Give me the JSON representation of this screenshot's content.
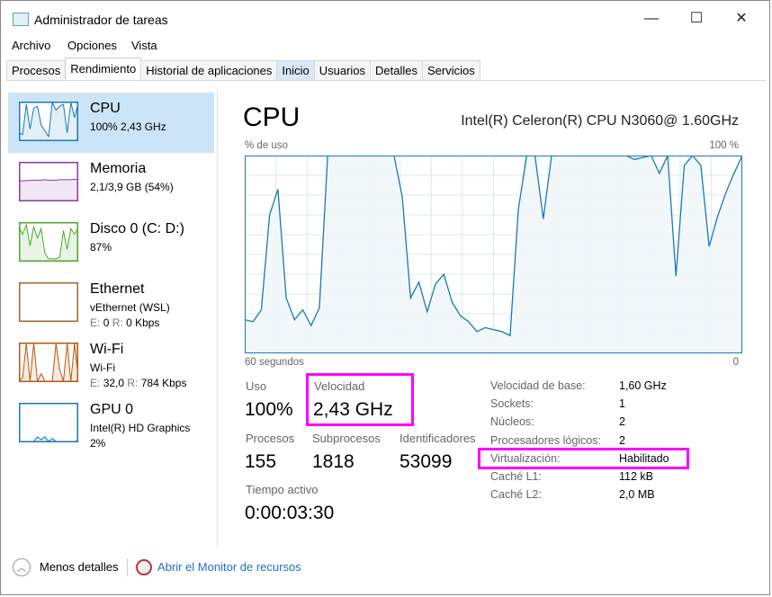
{
  "window": {
    "title": "Administrador de tareas",
    "minimize": "—",
    "maximize": "☐",
    "close": "✕"
  },
  "menu": [
    "Archivo",
    "Opciones",
    "Vista"
  ],
  "tabs": [
    {
      "label": "Procesos"
    },
    {
      "label": "Rendimiento",
      "active": true
    },
    {
      "label": "Historial de aplicaciones"
    },
    {
      "label": "Inicio",
      "hover": true
    },
    {
      "label": "Usuarios"
    },
    {
      "label": "Detalles"
    },
    {
      "label": "Servicios"
    }
  ],
  "sidebar": {
    "items": [
      {
        "name": "cpu",
        "title": "CPU",
        "line1": "100% 2,43 GHz",
        "color": "#1979b9",
        "selected": true,
        "spark": [
          20,
          15,
          95,
          30,
          85,
          90,
          40,
          25,
          10,
          100,
          80,
          90,
          95,
          20,
          100,
          60,
          100
        ]
      },
      {
        "name": "memoria",
        "title": "Memoria",
        "line1": "2,1/3,9 GB (54%)",
        "color": "#8b38a8",
        "spark": [
          52,
          52,
          53,
          53,
          54,
          54,
          54,
          55,
          54,
          54,
          54,
          55,
          55,
          55,
          55,
          56,
          56
        ]
      },
      {
        "name": "disco",
        "title": "Disco 0 (C: D:)",
        "line1": "87%",
        "color": "#4ea72e",
        "spark": [
          90,
          70,
          95,
          40,
          90,
          60,
          85,
          20,
          5,
          5,
          5,
          10,
          80,
          30,
          85,
          70,
          87
        ]
      },
      {
        "name": "ethernet",
        "title": "Ethernet",
        "line1": "vEthernet (WSL)",
        "e_label": "E:",
        "e_value": "0",
        "r_label": "R:",
        "r_value": "0 Kbps",
        "color": "#a7652a",
        "spark": [
          0,
          0,
          0,
          0,
          0,
          0,
          0,
          0,
          0,
          0,
          0,
          0,
          0,
          0,
          0,
          0,
          0
        ]
      },
      {
        "name": "wifi",
        "title": "Wi-Fi",
        "line1": "Wi-Fi",
        "e_label": "E:",
        "e_value": "32,0",
        "r_label": "R:",
        "r_value": "784 Kbps",
        "color": "#b85712",
        "spark": [
          0,
          10,
          100,
          0,
          100,
          0,
          20,
          0,
          0,
          0,
          100,
          30,
          0,
          100,
          0,
          100,
          10
        ]
      },
      {
        "name": "gpu",
        "title": "GPU 0",
        "line1": "Intel(R) HD Graphics",
        "line2": "2%",
        "color": "#1979b9",
        "spark": [
          0,
          0,
          0,
          0,
          0,
          12,
          5,
          12,
          0,
          8,
          0,
          0,
          0,
          0,
          0,
          0,
          2
        ]
      }
    ]
  },
  "main": {
    "title": "CPU",
    "model": "Intel(R) Celeron(R) CPU N3060@ 1.60GHz",
    "stats": {
      "uso_label": "Uso",
      "uso_value": "100%",
      "velocidad_label": "Velocidad",
      "velocidad_value": "2,43 GHz",
      "procesos_label": "Procesos",
      "procesos_value": "155",
      "subprocesos_label": "Subprocesos",
      "subprocesos_value": "1818",
      "identificadores_label": "Identificadores",
      "identificadores_value": "53099",
      "tiempo_label": "Tiempo activo",
      "tiempo_value": "0:00:03:30"
    },
    "details": [
      {
        "label": "Velocidad de base:",
        "value": "1,60 GHz"
      },
      {
        "label": "Sockets:",
        "value": "1"
      },
      {
        "label": "Núcleos:",
        "value": "2"
      },
      {
        "label": "Procesadores lógicos:",
        "value": "2"
      },
      {
        "label": "Virtualización:",
        "value": "Habilitado"
      },
      {
        "label": "Caché L1:",
        "value": "112 kB"
      },
      {
        "label": "Caché L2:",
        "value": "2,0 MB"
      }
    ],
    "highlight_color": "#ff00ff"
  },
  "chart_data": {
    "type": "area",
    "ylabel": "% de uso",
    "ymax_label": "100 %",
    "xlabel_left": "60 segundos",
    "xlabel_right": "0",
    "ylim": [
      0,
      100
    ],
    "xlim": [
      60,
      0
    ],
    "grid": true,
    "color": "#1979b9",
    "fill": "#f1f6fa",
    "values": [
      17,
      16,
      22,
      70,
      83,
      28,
      17,
      22,
      14,
      23,
      100,
      100,
      100,
      100,
      100,
      100,
      100,
      100,
      100,
      79,
      28,
      36,
      21,
      35,
      40,
      26,
      19,
      16,
      11,
      13,
      12,
      11,
      9,
      73,
      100,
      100,
      68,
      100,
      100,
      100,
      100,
      100,
      100,
      100,
      100,
      100,
      100,
      98,
      99,
      100,
      91,
      100,
      39,
      95,
      100,
      95,
      54,
      69,
      81,
      91,
      100
    ]
  },
  "footer": {
    "less_details": "Menos detalles",
    "open_monitor": "Abrir el Monitor de recursos"
  }
}
